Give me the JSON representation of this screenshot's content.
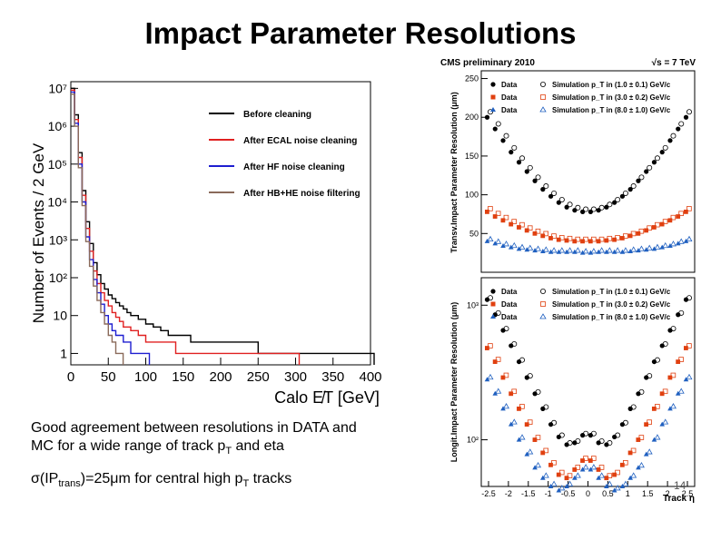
{
  "slide": {
    "title": "Impact Parameter Resolutions",
    "text_line1": "Good agreement between resolutions in DATA and",
    "text_line2_prefix": "MC for a wide range of track p",
    "text_line2_sub": "T",
    "text_line2_suffix": " and eta",
    "sigma_prefix": "σ(IP",
    "sigma_sub": "trans",
    "sigma_mid": ")=25μm for central high p",
    "sigma_sub2": "T",
    "sigma_suffix": " tracks",
    "slide_number": "14"
  },
  "chart_data": [
    {
      "type": "line",
      "ylabel": "Number of Events / 2 GeV",
      "xlabel": "Calo E̸T [GeV]",
      "log_y": true,
      "xlim": [
        0,
        400
      ],
      "ylim": [
        0.5,
        15000000
      ],
      "xticks": [
        "0",
        "50",
        "100",
        "150",
        "200",
        "250",
        "300",
        "350",
        "400"
      ],
      "yticks": [
        "1",
        "10",
        "10²",
        "10³",
        "10⁴",
        "10⁵",
        "10⁶",
        "10⁷"
      ],
      "legend_position": "top-right",
      "colors": [
        "#000000",
        "#e02020",
        "#1e1ed0",
        "#8a6a5a"
      ],
      "series": [
        {
          "name": "Before cleaning",
          "x": [
            0,
            5,
            10,
            15,
            20,
            25,
            30,
            35,
            40,
            45,
            50,
            55,
            60,
            65,
            70,
            75,
            80,
            90,
            100,
            110,
            120,
            130,
            140,
            160,
            180,
            200,
            220,
            250,
            280,
            310,
            340,
            370,
            400
          ],
          "y": [
            10000000,
            2000000,
            200000,
            20000,
            3000,
            800,
            250,
            120,
            70,
            50,
            35,
            28,
            22,
            18,
            15,
            12,
            10,
            8,
            6,
            5,
            4,
            3,
            3,
            2,
            2,
            2,
            2,
            1,
            1,
            1,
            1,
            1,
            1
          ]
        },
        {
          "name": "After ECAL noise cleaning",
          "x": [
            0,
            5,
            10,
            15,
            20,
            25,
            30,
            35,
            40,
            45,
            50,
            55,
            60,
            65,
            70,
            80,
            90,
            100,
            120,
            140,
            160,
            200,
            250,
            300
          ],
          "y": [
            9000000,
            1500000,
            150000,
            15000,
            2000,
            500,
            150,
            70,
            40,
            25,
            18,
            12,
            9,
            7,
            5,
            4,
            3,
            2,
            2,
            1,
            1,
            1,
            1,
            1
          ]
        },
        {
          "name": "After HF noise cleaning",
          "x": [
            0,
            5,
            10,
            15,
            20,
            25,
            30,
            35,
            40,
            45,
            50,
            55,
            60,
            70,
            80,
            90,
            100
          ],
          "y": [
            8000000,
            1200000,
            100000,
            10000,
            1200,
            300,
            90,
            40,
            20,
            10,
            6,
            4,
            3,
            2,
            1,
            1,
            1
          ]
        },
        {
          "name": "After HB+HE noise filtering",
          "x": [
            0,
            5,
            10,
            15,
            20,
            25,
            30,
            35,
            40,
            45,
            50,
            55,
            60,
            65
          ],
          "y": [
            7000000,
            1000000,
            80000,
            8000,
            900,
            200,
            60,
            25,
            12,
            6,
            3,
            2,
            1,
            1
          ]
        }
      ]
    },
    {
      "type": "scatter",
      "header_left": "CMS preliminary 2010",
      "header_right": "√s = 7 TeV",
      "ylabel": "Transv.Impact Parameter Resolution (μm)",
      "yticks": [
        "50",
        "100",
        "150",
        "200",
        "250"
      ],
      "ylim": [
        0,
        260
      ],
      "xlim": [
        -2.5,
        2.5
      ],
      "legend": [
        {
          "marker": "Data",
          "sim": "Simulation  p_T in (1.0 ± 0.1) GeV/c",
          "color": "#000000",
          "shape": "circle"
        },
        {
          "marker": "Data",
          "sim": "Simulation  p_T in (3.0 ± 0.2) GeV/c",
          "color": "#e04010",
          "shape": "square"
        },
        {
          "marker": "Data",
          "sim": "Simulation  p_T in (8.0 ± 1.0) GeV/c",
          "color": "#2060c0",
          "shape": "triangle"
        }
      ],
      "eta": [
        -2.5,
        -2.3,
        -2.1,
        -1.9,
        -1.7,
        -1.5,
        -1.3,
        -1.1,
        -0.9,
        -0.7,
        -0.5,
        -0.3,
        -0.1,
        0.1,
        0.3,
        0.5,
        0.7,
        0.9,
        1.1,
        1.3,
        1.5,
        1.7,
        1.9,
        2.1,
        2.3,
        2.5
      ],
      "series": [
        {
          "values": [
            200,
            185,
            170,
            155,
            142,
            130,
            118,
            107,
            98,
            90,
            84,
            80,
            78,
            78,
            80,
            84,
            90,
            98,
            107,
            118,
            130,
            142,
            155,
            170,
            185,
            200
          ]
        },
        {
          "values": [
            78,
            72,
            67,
            62,
            58,
            54,
            50,
            47,
            44,
            42,
            41,
            40,
            40,
            40,
            40,
            41,
            42,
            44,
            47,
            50,
            54,
            58,
            62,
            67,
            72,
            78
          ]
        },
        {
          "values": [
            40,
            37,
            34,
            32,
            30,
            29,
            28,
            27,
            26,
            26,
            26,
            26,
            25,
            25,
            26,
            26,
            26,
            26,
            27,
            28,
            29,
            30,
            32,
            34,
            37,
            40
          ]
        }
      ]
    },
    {
      "type": "scatter",
      "ylabel": "Longit.Impact Parameter Resolution (μm)",
      "xlabel": "Track η",
      "log_y": true,
      "yticks": [
        "10²",
        "10³"
      ],
      "ylim": [
        45,
        1600
      ],
      "xticks": [
        "-2.5",
        "-2",
        "-1.5",
        "-1",
        "-0.5",
        "0",
        "0.5",
        "1",
        "1.5",
        "2",
        "2.5"
      ],
      "xlim": [
        -2.5,
        2.5
      ],
      "legend": [
        {
          "marker": "Data",
          "sim": "Simulation  p_T in (1.0 ± 0.1) GeV/c",
          "color": "#000000",
          "shape": "circle"
        },
        {
          "marker": "Data",
          "sim": "Simulation  p_T in (3.0 ± 0.2) GeV/c",
          "color": "#e04010",
          "shape": "square"
        },
        {
          "marker": "Data",
          "sim": "Simulation  p_T in (8.0 ± 1.0) GeV/c",
          "color": "#2060c0",
          "shape": "triangle"
        }
      ],
      "eta": [
        -2.5,
        -2.3,
        -2.1,
        -1.9,
        -1.7,
        -1.5,
        -1.3,
        -1.1,
        -0.9,
        -0.7,
        -0.5,
        -0.3,
        -0.1,
        0.1,
        0.3,
        0.5,
        0.7,
        0.9,
        1.1,
        1.3,
        1.5,
        1.7,
        1.9,
        2.1,
        2.3,
        2.5
      ],
      "series": [
        {
          "values": [
            1100,
            850,
            650,
            500,
            380,
            290,
            220,
            170,
            130,
            105,
            92,
            95,
            108,
            108,
            95,
            92,
            105,
            130,
            170,
            220,
            290,
            380,
            500,
            650,
            850,
            1100
          ]
        },
        {
          "values": [
            480,
            380,
            290,
            220,
            170,
            130,
            100,
            80,
            65,
            55,
            52,
            60,
            70,
            70,
            60,
            52,
            55,
            65,
            80,
            100,
            130,
            170,
            220,
            290,
            380,
            480
          ]
        },
        {
          "values": [
            280,
            220,
            170,
            130,
            100,
            78,
            62,
            52,
            45,
            42,
            45,
            52,
            60,
            60,
            52,
            45,
            42,
            45,
            52,
            62,
            78,
            100,
            130,
            170,
            220,
            280
          ]
        }
      ]
    }
  ]
}
